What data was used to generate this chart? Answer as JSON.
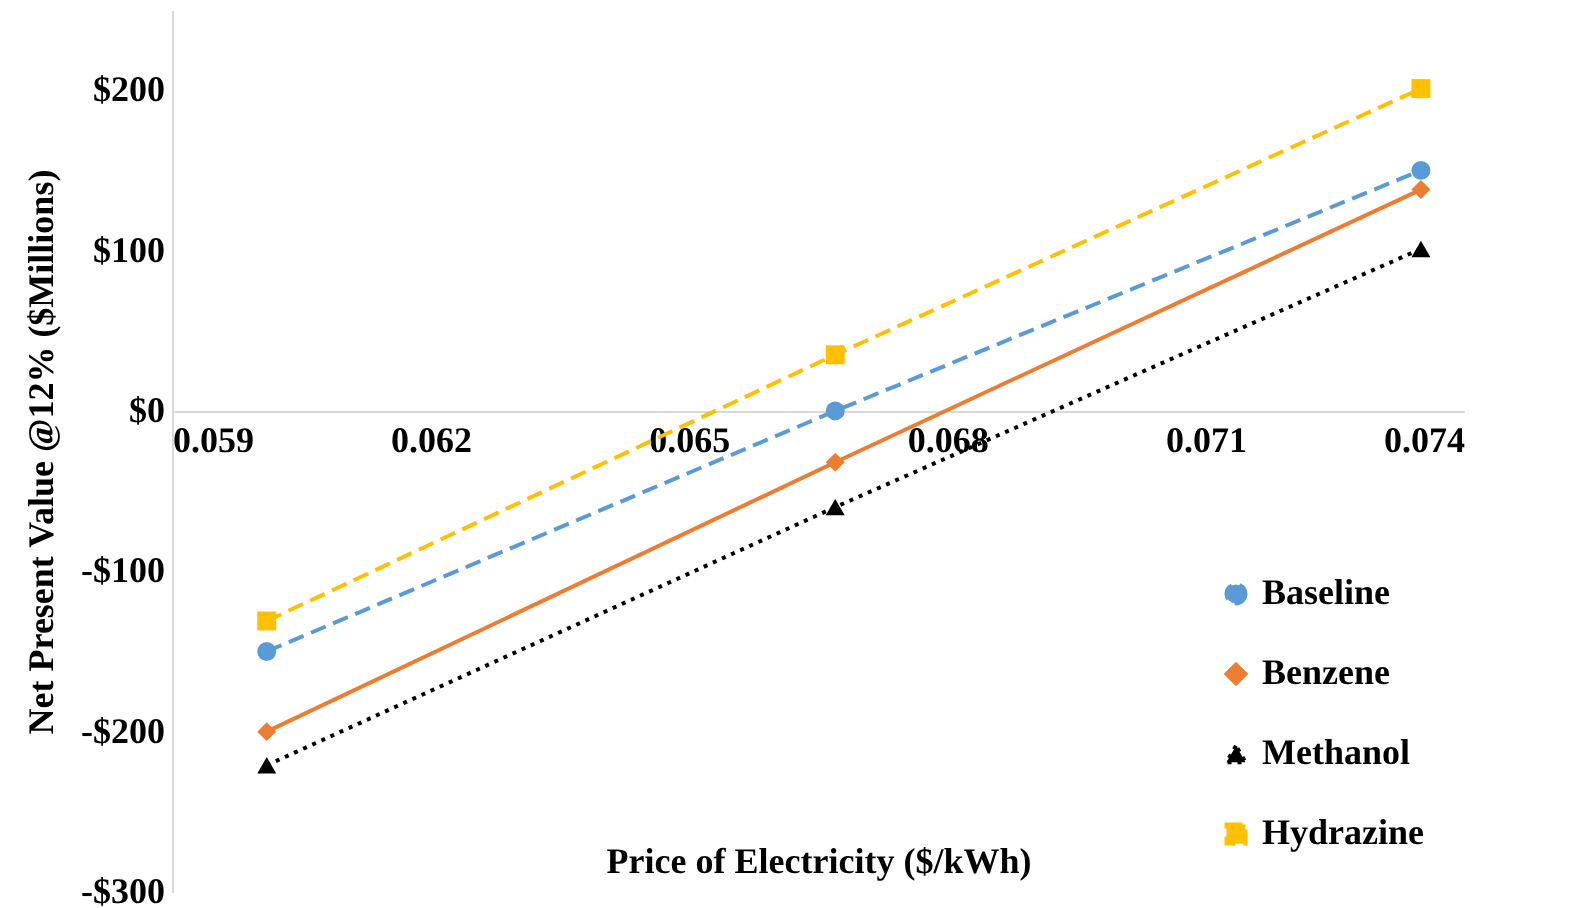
{
  "chart_data": {
    "type": "line",
    "xlabel": "Price of Electricity ($/kWh)",
    "ylabel": "Net Present Value @12% ($Millions)",
    "xlim": [
      0.059,
      0.074
    ],
    "xticks": [
      0.059,
      0.062,
      0.065,
      0.068,
      0.071,
      0.074
    ],
    "ylim": [
      -300,
      250
    ],
    "yticks": [
      {
        "value": -300,
        "label": "-$300"
      },
      {
        "value": -200,
        "label": "-$200"
      },
      {
        "value": -100,
        "label": "-$100"
      },
      {
        "value": 0,
        "label": "$0"
      },
      {
        "value": 100,
        "label": "$100"
      },
      {
        "value": 200,
        "label": "$200"
      }
    ],
    "x": [
      0.0601,
      0.0667,
      0.0735
    ],
    "series": [
      {
        "name": "Baseline",
        "color": "#5b9bd5",
        "marker": "circle",
        "line_style": "dashed",
        "values": [
          -150,
          0,
          150
        ]
      },
      {
        "name": "Benzene",
        "color": "#ed7d31",
        "marker": "diamond",
        "line_style": "solid",
        "values": [
          -200,
          -32,
          138
        ]
      },
      {
        "name": "Methanol",
        "color": "#000000",
        "marker": "triangle",
        "line_style": "dotted",
        "values": [
          -221,
          -60,
          101
        ]
      },
      {
        "name": "Hydrazine",
        "color": "#ffc000",
        "marker": "square",
        "line_style": "dashed",
        "values": [
          -131,
          35,
          201
        ]
      }
    ],
    "grid": false,
    "legend": "bottom right"
  }
}
